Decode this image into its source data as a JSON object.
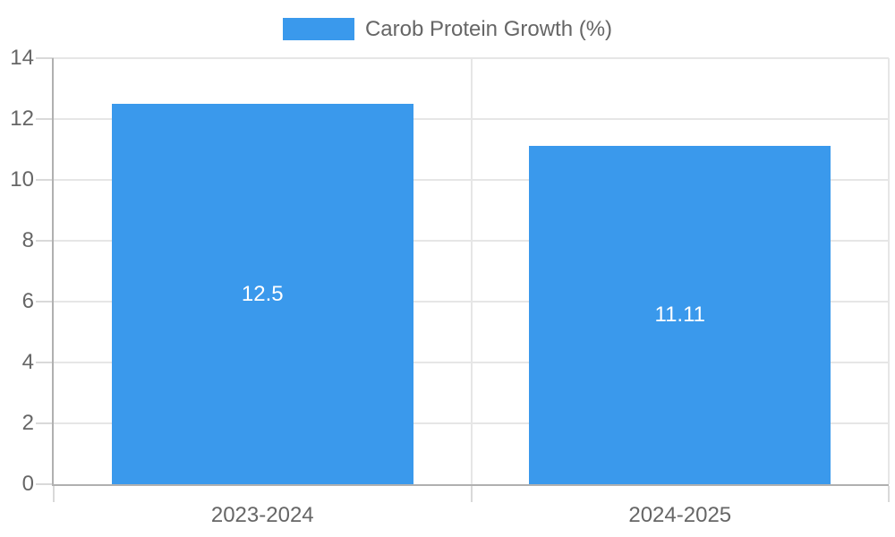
{
  "chart_data": {
    "type": "bar",
    "legend": {
      "position": "top",
      "label": "Carob Protein Growth (%)"
    },
    "categories": [
      "2023-2024",
      "2024-2025"
    ],
    "series": [
      {
        "name": "Carob Protein Growth (%)",
        "values": [
          12.5,
          11.11
        ]
      }
    ],
    "value_labels": [
      "12.5",
      "11.11"
    ],
    "yticks": [
      0,
      2,
      4,
      6,
      8,
      10,
      12,
      14
    ],
    "ylim": [
      0,
      14
    ],
    "grid": true,
    "colors": {
      "bar": "#3a99ec",
      "value_label_text": "#ffffff",
      "axis_text": "#666666",
      "grid_line": "#e6e6e6",
      "tick_mark": "#d9d9d9",
      "axis_line": "#b0b0b0",
      "background": "#ffffff"
    }
  }
}
